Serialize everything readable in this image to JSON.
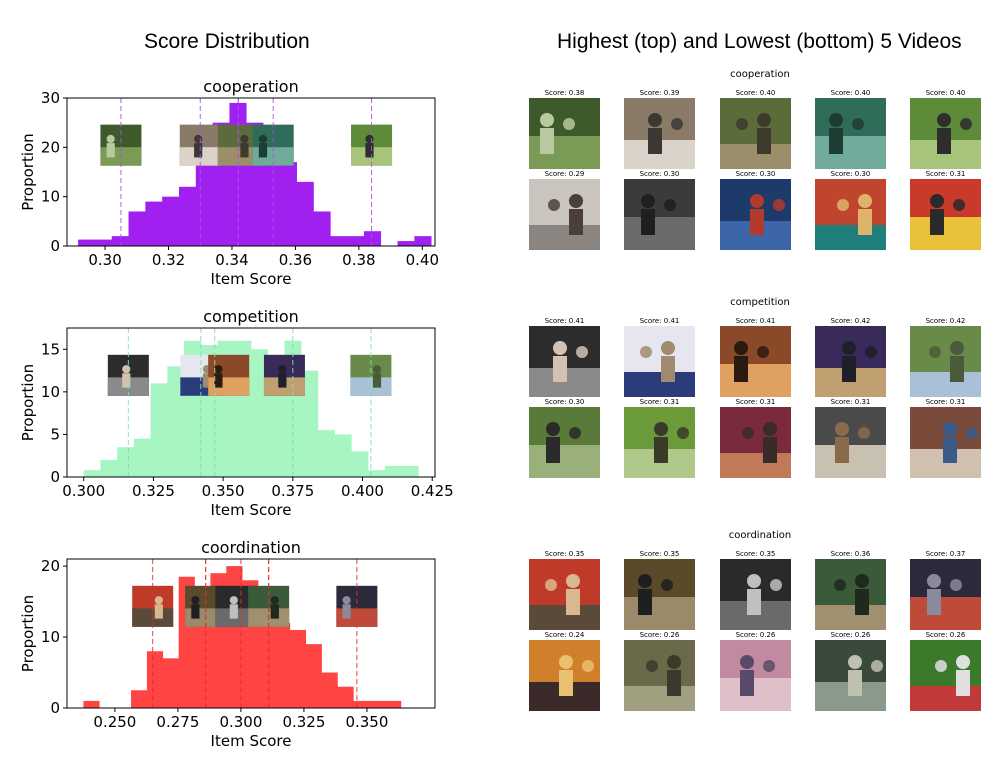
{
  "headings": {
    "left": "Score Distribution",
    "right": "Highest (top) and Lowest (bottom) 5 Videos"
  },
  "chart_data": [
    {
      "type": "bar",
      "title": "cooperation",
      "xlabel": "Item Score",
      "ylabel": "Proportion",
      "color": "#a020f0",
      "fill_color": "#a020f0",
      "line_color": "#a94ff0",
      "ylim": [
        0,
        30
      ],
      "xlim": [
        0.288,
        0.404
      ],
      "xticks": [
        0.3,
        0.32,
        0.34,
        0.36,
        0.38,
        0.4
      ],
      "xtick_labels": [
        "0.30",
        "0.32",
        "0.34",
        "0.36",
        "0.38",
        "0.40"
      ],
      "yticks": [
        0,
        10,
        20,
        30
      ],
      "bin_edges": [
        0.2915,
        0.2968,
        0.3021,
        0.3074,
        0.3127,
        0.318,
        0.3233,
        0.3286,
        0.3339,
        0.3392,
        0.3445,
        0.3498,
        0.3551,
        0.3604,
        0.3657,
        0.371,
        0.3763,
        0.3816,
        0.3869,
        0.3922,
        0.3975,
        0.4028
      ],
      "values": [
        1.3,
        1.3,
        2,
        7,
        9,
        10,
        12,
        19,
        25,
        29,
        25,
        19,
        17,
        13,
        7,
        2,
        2,
        3,
        0,
        1,
        2
      ],
      "vlines": [
        0.305,
        0.33,
        0.342,
        0.353,
        0.384
      ],
      "vline_strengths": [
        1,
        1,
        2,
        1,
        1
      ],
      "thumb_anchors": [
        0.305,
        0.33,
        0.342,
        0.353,
        0.384
      ]
    },
    {
      "type": "bar",
      "title": "competition",
      "xlabel": "Item Score",
      "ylabel": "Proportion",
      "color": "#90eeb0",
      "fill_color": "#a7f5c3",
      "line_color": "#7fe3a5",
      "ylim": [
        0,
        17.5
      ],
      "xlim": [
        0.294,
        0.426
      ],
      "xticks": [
        0.3,
        0.325,
        0.35,
        0.375,
        0.4,
        0.425
      ],
      "xtick_labels": [
        "0.300",
        "0.325",
        "0.350",
        "0.375",
        "0.400",
        "0.425"
      ],
      "yticks": [
        0,
        5,
        10,
        15
      ],
      "bin_edges": [
        0.3,
        0.306,
        0.312,
        0.318,
        0.324,
        0.33,
        0.336,
        0.342,
        0.348,
        0.354,
        0.36,
        0.366,
        0.372,
        0.378,
        0.384,
        0.39,
        0.396,
        0.402,
        0.408,
        0.414,
        0.42
      ],
      "values": [
        0.8,
        2,
        3.5,
        4.5,
        11,
        13,
        16,
        15.5,
        16,
        16,
        15,
        14,
        16,
        12.5,
        5.5,
        5,
        3,
        0.8,
        1.3,
        1.3
      ],
      "vlines": [
        0.316,
        0.342,
        0.347,
        0.375,
        0.403
      ],
      "vline_strengths": [
        1,
        1,
        1,
        1,
        1
      ],
      "thumb_anchors": [
        0.316,
        0.342,
        0.352,
        0.372,
        0.403
      ]
    },
    {
      "type": "bar",
      "title": "coordination",
      "xlabel": "Item Score",
      "ylabel": "Proportion",
      "color": "#ff4d4d",
      "fill_color": "#ff4444",
      "line_color": "#e03030",
      "ylim": [
        0,
        21
      ],
      "xlim": [
        0.231,
        0.377
      ],
      "xticks": [
        0.25,
        0.275,
        0.3,
        0.325,
        0.35
      ],
      "xtick_labels": [
        "0.250",
        "0.275",
        "0.300",
        "0.325",
        "0.350"
      ],
      "yticks": [
        0,
        10,
        20
      ],
      "bin_edges": [
        0.2375,
        0.2438,
        0.2501,
        0.2564,
        0.2627,
        0.269,
        0.2753,
        0.2816,
        0.2879,
        0.2942,
        0.3005,
        0.3068,
        0.3131,
        0.3194,
        0.3257,
        0.332,
        0.3383,
        0.3446,
        0.3509,
        0.3572,
        0.3635,
        0.3698
      ],
      "values": [
        1,
        0,
        0,
        2.5,
        8,
        7,
        18.5,
        17,
        19,
        20,
        18,
        17,
        12,
        11,
        9,
        5,
        3,
        1,
        1,
        1,
        0
      ],
      "vlines": [
        0.265,
        0.286,
        0.3,
        0.311,
        0.346
      ],
      "vline_strengths": [
        1,
        2,
        1,
        2,
        1
      ],
      "thumb_anchors": [
        0.265,
        0.286,
        0.298,
        0.311,
        0.346
      ]
    }
  ],
  "video_panels": [
    {
      "title": "cooperation",
      "top": [
        {
          "score": "Score: 0.38",
          "icon": "people-garden-photo",
          "palette": [
            "#3e5a2a",
            "#7a9a55",
            "#b8c8a0"
          ]
        },
        {
          "score": "Score: 0.39",
          "icon": "people-sofa-photo",
          "palette": [
            "#8a7a68",
            "#d9d3c9",
            "#3b3834"
          ]
        },
        {
          "score": "Score: 0.40",
          "icon": "people-digging-photo",
          "palette": [
            "#5c6b3a",
            "#9a8f6a",
            "#3d3a2e"
          ]
        },
        {
          "score": "Score: 0.40",
          "icon": "table-tennis-photo",
          "palette": [
            "#2f6d5a",
            "#6faa9a",
            "#1d3d33"
          ]
        },
        {
          "score": "Score: 0.40",
          "icon": "people-field-photo",
          "palette": [
            "#5d8b3a",
            "#a7c47a",
            "#2d2d2d"
          ]
        }
      ],
      "bottom": [
        {
          "score": "Score: 0.29",
          "icon": "dancer-room-photo",
          "palette": [
            "#c9c4bd",
            "#8a8580",
            "#4a3f3a"
          ]
        },
        {
          "score": "Score: 0.30",
          "icon": "badminton-photo",
          "palette": [
            "#3b3b3b",
            "#6b6b6b",
            "#1f1f1f"
          ]
        },
        {
          "score": "Score: 0.30",
          "icon": "tennis-indoor-photo",
          "palette": [
            "#1d3a6b",
            "#3c66a8",
            "#b23a2c"
          ]
        },
        {
          "score": "Score: 0.30",
          "icon": "players-gym-photo",
          "palette": [
            "#c0452f",
            "#1f7f7a",
            "#e0b36a"
          ]
        },
        {
          "score": "Score: 0.31",
          "icon": "band-stage-photo",
          "palette": [
            "#c93a2a",
            "#e8c23a",
            "#2a2a2a"
          ]
        }
      ]
    },
    {
      "title": "competition",
      "top": [
        {
          "score": "Score: 0.41",
          "icon": "men-car-photo",
          "palette": [
            "#2c2c2c",
            "#8a8a8a",
            "#d4c2b0"
          ]
        },
        {
          "score": "Score: 0.41",
          "icon": "karate-kids-photo",
          "palette": [
            "#e6e6f0",
            "#2a3d7a",
            "#a08a70"
          ]
        },
        {
          "score": "Score: 0.41",
          "icon": "woman-eating-photo",
          "palette": [
            "#8a4a2a",
            "#e0a060",
            "#2a1a10"
          ]
        },
        {
          "score": "Score: 0.42",
          "icon": "arm-wrestling-photo",
          "palette": [
            "#3a2a5a",
            "#c0a070",
            "#1f1f2a"
          ]
        },
        {
          "score": "Score: 0.42",
          "icon": "park-pond-photo",
          "palette": [
            "#6a8a4a",
            "#a8c0d8",
            "#4a5a3a"
          ]
        }
      ],
      "bottom": [
        {
          "score": "Score: 0.30",
          "icon": "dancing-yard-photo",
          "palette": [
            "#5a7a3a",
            "#9ab07a",
            "#2a2a2a"
          ]
        },
        {
          "score": "Score: 0.31",
          "icon": "people-field-photo",
          "palette": [
            "#6a9a3a",
            "#b0c88a",
            "#3a3a2a"
          ]
        },
        {
          "score": "Score: 0.31",
          "icon": "woman-glasses-photo",
          "palette": [
            "#7a2a3a",
            "#c07a5a",
            "#3a2a2a"
          ]
        },
        {
          "score": "Score: 0.31",
          "icon": "men-table-photo",
          "palette": [
            "#4a4a4a",
            "#c8c0b0",
            "#8a6a4a"
          ]
        },
        {
          "score": "Score: 0.31",
          "icon": "people-couch-photo",
          "palette": [
            "#7a4a3a",
            "#d0c0b0",
            "#3a5a8a"
          ]
        }
      ]
    },
    {
      "title": "coordination",
      "top": [
        {
          "score": "Score: 0.35",
          "icon": "kid-drums-photo",
          "palette": [
            "#c03a2a",
            "#5a4a3a",
            "#d8b890"
          ]
        },
        {
          "score": "Score: 0.35",
          "icon": "band-room-photo",
          "palette": [
            "#5a4a2a",
            "#9a8a6a",
            "#1f1f1f"
          ]
        },
        {
          "score": "Score: 0.35",
          "icon": "dancing-couple-photo",
          "palette": [
            "#2a2a2a",
            "#6a6a6a",
            "#c0c0c0"
          ]
        },
        {
          "score": "Score: 0.36",
          "icon": "man-equipment-photo",
          "palette": [
            "#3a5a3a",
            "#a09070",
            "#1f2a1f"
          ]
        },
        {
          "score": "Score: 0.37",
          "icon": "drummer-band-photo",
          "palette": [
            "#2a2a3a",
            "#c04a3a",
            "#8a8a9a"
          ]
        }
      ],
      "bottom": [
        {
          "score": "Score: 0.24",
          "icon": "kid-eating-photo",
          "palette": [
            "#d0802a",
            "#3a2a2a",
            "#e8c070"
          ]
        },
        {
          "score": "Score: 0.26",
          "icon": "people-woods-photo",
          "palette": [
            "#6a6a4a",
            "#a0a080",
            "#3a3a2a"
          ]
        },
        {
          "score": "Score: 0.26",
          "icon": "baby-blanket-photo",
          "palette": [
            "#c08aa0",
            "#e0c0c8",
            "#5a4a6a"
          ]
        },
        {
          "score": "Score: 0.26",
          "icon": "kids-playing-photo",
          "palette": [
            "#3a4a3a",
            "#8a9a8a",
            "#c0c0b0"
          ]
        },
        {
          "score": "Score: 0.26",
          "icon": "kid-toy-car-photo",
          "palette": [
            "#3a7a2a",
            "#c03a3a",
            "#e0e0e0"
          ]
        }
      ]
    }
  ]
}
